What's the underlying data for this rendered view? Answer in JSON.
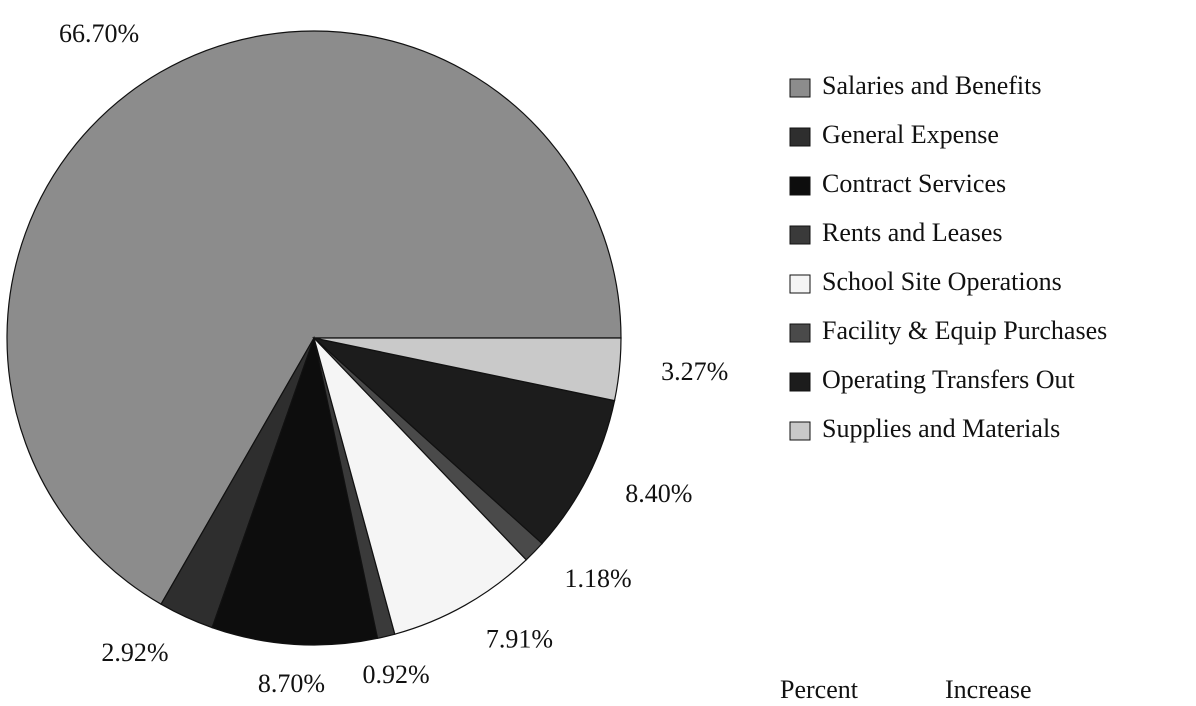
{
  "chart_data": {
    "type": "pie",
    "categories": [
      "Salaries and Benefits",
      "General Expense",
      "Contract Services",
      "Rents and Leases",
      "School Site Operations",
      "Facility & Equip Purchases",
      "Operating Transfers Out",
      "Supplies and Materials"
    ],
    "values": [
      66.7,
      2.92,
      8.7,
      0.92,
      7.91,
      1.18,
      8.4,
      3.27
    ],
    "value_labels": [
      "66.70%",
      "2.92%",
      "8.70%",
      "0.92%",
      "7.91%",
      "1.18%",
      "8.40%",
      "3.27%"
    ],
    "colors": [
      "#8c8c8c",
      "#2e2e2e",
      "#0d0d0d",
      "#3a3a3a",
      "#f5f5f5",
      "#4a4a4a",
      "#1c1c1c",
      "#c9c9c9"
    ],
    "legend": "right"
  },
  "footer": [
    "Percent",
    "Increase"
  ]
}
